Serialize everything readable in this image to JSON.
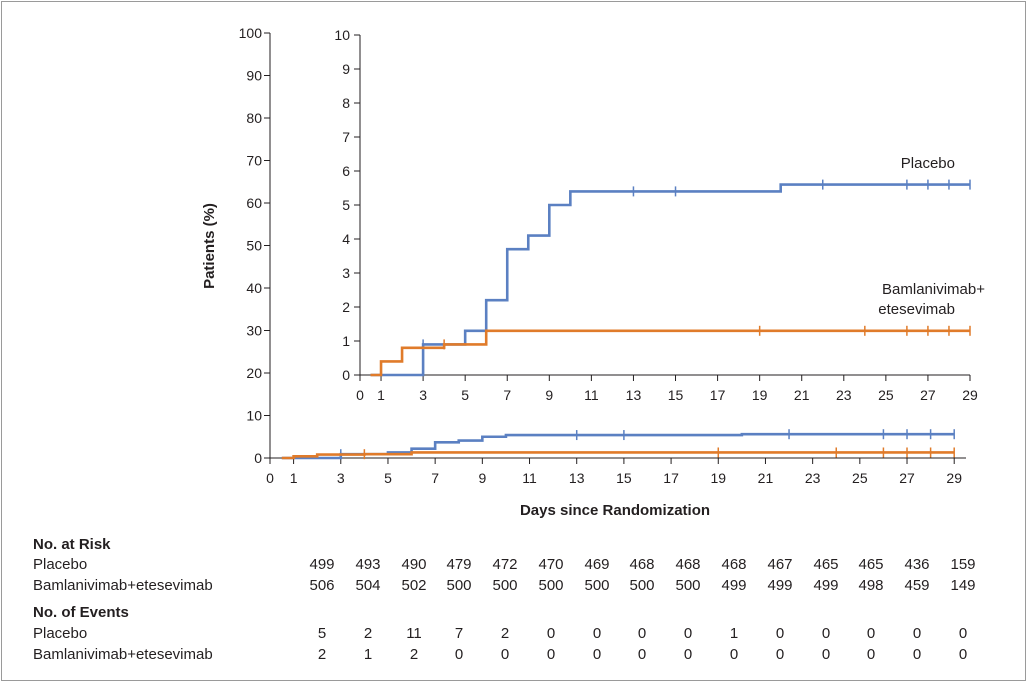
{
  "chart_data": [
    {
      "type": "line",
      "name": "main-kaplan-meier",
      "ylabel": "Patients (%)",
      "xlabel": "Days since Randomization",
      "xlim": [
        0,
        29.5
      ],
      "ylim": [
        0,
        100
      ],
      "xticks": [
        0,
        1,
        3,
        5,
        7,
        9,
        11,
        13,
        15,
        17,
        19,
        21,
        23,
        25,
        27,
        29
      ],
      "yticks": [
        0,
        10,
        20,
        30,
        40,
        50,
        60,
        70,
        80,
        90,
        100
      ],
      "series": [
        {
          "name": "Placebo",
          "color": "#5b80c2",
          "steps": [
            [
              0.5,
              0
            ],
            [
              1,
              0
            ],
            [
              3,
              0.9
            ],
            [
              5,
              1.3
            ],
            [
              6,
              2.2
            ],
            [
              7,
              3.7
            ],
            [
              8,
              4.1
            ],
            [
              9,
              5.0
            ],
            [
              10,
              5.4
            ],
            [
              20,
              5.6
            ],
            [
              29,
              5.6
            ]
          ],
          "censor": [
            3,
            13,
            15,
            22,
            26,
            27,
            28,
            29
          ]
        },
        {
          "name": "Bamlanivimab+etesevimab",
          "color": "#e07b2a",
          "steps": [
            [
              0.5,
              0
            ],
            [
              1,
              0.4
            ],
            [
              2,
              0.8
            ],
            [
              4,
              0.9
            ],
            [
              6,
              1.3
            ],
            [
              29,
              1.3
            ]
          ],
          "censor": [
            4,
            19,
            24,
            26,
            27,
            28,
            29
          ]
        }
      ]
    },
    {
      "type": "line",
      "name": "inset-kaplan-meier",
      "xlim": [
        0,
        29
      ],
      "ylim": [
        0,
        10
      ],
      "xticks": [
        0,
        1,
        3,
        5,
        7,
        9,
        11,
        13,
        15,
        17,
        19,
        21,
        23,
        25,
        27,
        29
      ],
      "yticks": [
        0,
        1,
        2,
        3,
        4,
        5,
        6,
        7,
        8,
        9,
        10
      ],
      "legend_labels": {
        "placebo": "Placebo",
        "bam_line1": "Bamlanivimab+",
        "bam_line2": "etesevimab"
      }
    }
  ],
  "table": {
    "at_risk_heading": "No. at Risk",
    "events_heading": "No. of Events",
    "rows_at_risk": [
      {
        "label": "Placebo",
        "values": [
          "499",
          "493",
          "490",
          "479",
          "472",
          "470",
          "469",
          "468",
          "468",
          "468",
          "467",
          "465",
          "465",
          "436",
          "159"
        ]
      },
      {
        "label": "Bamlanivimab+etesevimab",
        "values": [
          "506",
          "504",
          "502",
          "500",
          "500",
          "500",
          "500",
          "500",
          "500",
          "499",
          "499",
          "499",
          "498",
          "459",
          "149"
        ]
      }
    ],
    "rows_events": [
      {
        "label": "Placebo",
        "values": [
          "5",
          "2",
          "11",
          "7",
          "2",
          "0",
          "0",
          "0",
          "0",
          "1",
          "0",
          "0",
          "0",
          "0",
          "0"
        ]
      },
      {
        "label": "Bamlanivimab+etesevimab",
        "values": [
          "2",
          "1",
          "2",
          "0",
          "0",
          "0",
          "0",
          "0",
          "0",
          "0",
          "0",
          "0",
          "0",
          "0",
          "0"
        ]
      }
    ]
  }
}
